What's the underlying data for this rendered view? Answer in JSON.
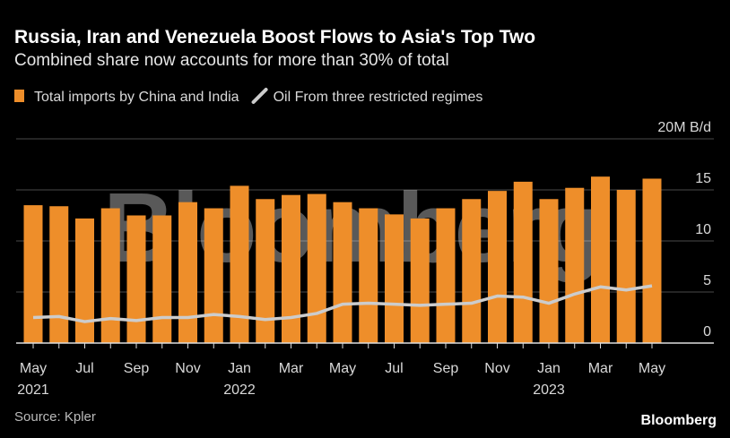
{
  "chart_data": {
    "type": "bar+line",
    "title": "Russia, Iran and Venezuela Boost Flows to Asia's Top Two",
    "subtitle": "Combined share now accounts for more than 30% of total",
    "source": "Source: Kpler",
    "brand": "Bloomberg",
    "watermark": "Bloomberg",
    "categories": [
      "May 2021",
      null,
      "Jul",
      null,
      "Sep",
      null,
      "Nov",
      null,
      "Jan 2022",
      null,
      "Mar",
      null,
      "May",
      null,
      "Jul",
      null,
      "Sep",
      null,
      "Nov",
      null,
      "Jan 2023",
      null,
      "Mar",
      null,
      "May"
    ],
    "series": [
      {
        "name": "Total imports by China and India",
        "type": "bar",
        "color": "#ee8e2a",
        "values": [
          13.5,
          13.4,
          12.2,
          13.2,
          12.5,
          12.5,
          13.8,
          13.2,
          15.4,
          14.1,
          14.5,
          14.6,
          13.8,
          13.2,
          12.6,
          12.2,
          13.2,
          14.1,
          14.9,
          15.8,
          14.1,
          15.2,
          16.3,
          15.0,
          16.1
        ]
      },
      {
        "name": "Oil From three restricted regimes",
        "type": "line",
        "color": "#cccccc",
        "values": [
          2.5,
          2.6,
          2.1,
          2.4,
          2.2,
          2.5,
          2.5,
          2.8,
          2.6,
          2.3,
          2.5,
          2.9,
          3.8,
          3.9,
          3.8,
          3.7,
          3.8,
          3.9,
          4.6,
          4.5,
          3.9,
          4.8,
          5.5,
          5.2,
          5.6
        ]
      }
    ],
    "ylim": [
      0,
      20
    ],
    "yticks": [
      0,
      5,
      10,
      15,
      {
        "value": 20,
        "label": "20M B/d"
      }
    ],
    "grid": true
  }
}
